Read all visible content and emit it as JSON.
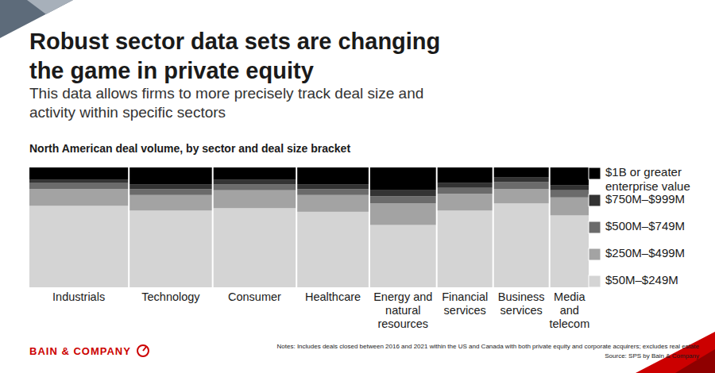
{
  "chart_data": {
    "type": "bar",
    "title": "Robust sector data sets are changing the game in private equity",
    "subtitle": "This data allows firms to more precisely track deal size and activity within specific sectors",
    "chart_title": "North American deal volume, by sector and deal size bracket",
    "categories": [
      "Industrials",
      "Technology",
      "Consumer",
      "Healthcare",
      "Energy and natural resources",
      "Financial services",
      "Business services",
      "Media and telecom"
    ],
    "sector_share": [
      18,
      15,
      15,
      13,
      12,
      10,
      10,
      7
    ],
    "series": [
      {
        "name": "$50M–$249M",
        "color": "#d4d4d4",
        "values": [
          68,
          64,
          66,
          63,
          52,
          64,
          70,
          60
        ]
      },
      {
        "name": "$250M–$499M",
        "color": "#a3a3a3",
        "values": [
          14,
          13,
          15,
          14,
          18,
          14,
          12,
          15
        ]
      },
      {
        "name": "$500M–$749M",
        "color": "#6b6b6b",
        "values": [
          5,
          5,
          5,
          5,
          6,
          5,
          6,
          6
        ]
      },
      {
        "name": "$750M–$999M",
        "color": "#333333",
        "values": [
          3,
          4,
          4,
          4,
          5,
          4,
          4,
          4
        ]
      },
      {
        "name": "$1B or greater enterprise value",
        "color": "#000000",
        "values": [
          10,
          14,
          10,
          14,
          19,
          13,
          8,
          15
        ]
      }
    ],
    "ylim": [
      0,
      100
    ],
    "stacked": true,
    "legend": "right",
    "notes": "Notes: Includes deals closed between 2016 and 2021 within the US and Canada with both private equity and corporate acquirers; excludes real estate",
    "source": "Source: SPS by Bain & Company",
    "brand": "BAIN & COMPANY"
  }
}
